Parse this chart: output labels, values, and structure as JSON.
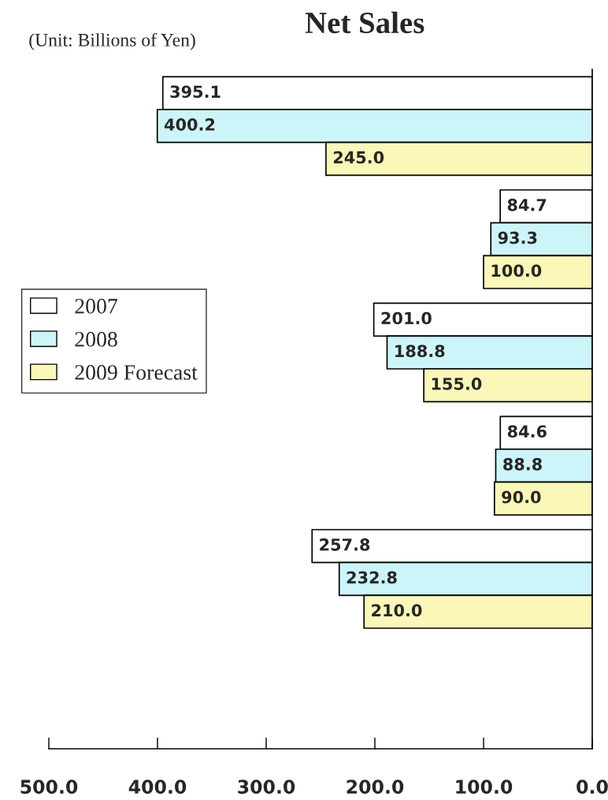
{
  "chart_data": {
    "type": "bar",
    "orientation": "horizontal",
    "title": "Net Sales",
    "annotations": [
      "(Unit: Billions of Yen)"
    ],
    "categories": [
      null,
      null,
      null,
      null,
      null,
      null
    ],
    "series": [
      {
        "name": "2007",
        "color": "#ffffff",
        "values": [
          395.1,
          84.7,
          201.0,
          84.6,
          257.8,
          null
        ],
        "value_labels": [
          "395.1",
          "84.7",
          "201.0",
          "84.6",
          "257.8",
          null
        ]
      },
      {
        "name": "2008",
        "color": "#ccf5fa",
        "values": [
          400.2,
          93.3,
          188.8,
          88.8,
          232.8,
          null
        ],
        "value_labels": [
          "400.2",
          "93.3",
          "188.8",
          "88.8",
          "232.8",
          null
        ]
      },
      {
        "name": "2009 Forecast",
        "color": "#fbf7b8",
        "values": [
          245.0,
          100.0,
          155.0,
          90.0,
          210.0,
          null
        ],
        "value_labels": [
          "245.0",
          "100.0",
          "155.0",
          "90.0",
          "210.0",
          null
        ]
      }
    ],
    "xlim": [
      500,
      0
    ],
    "xticks": [
      {
        "value": 500,
        "label": "500.0"
      },
      {
        "value": 400,
        "label": "400.0"
      },
      {
        "value": 300,
        "label": "300.0"
      },
      {
        "value": 200,
        "label": "200.0"
      },
      {
        "value": 100,
        "label": "100.0"
      },
      {
        "value": 0,
        "label": "0.0"
      }
    ],
    "tick_labels": "x",
    "grid": false,
    "legend": "left"
  }
}
